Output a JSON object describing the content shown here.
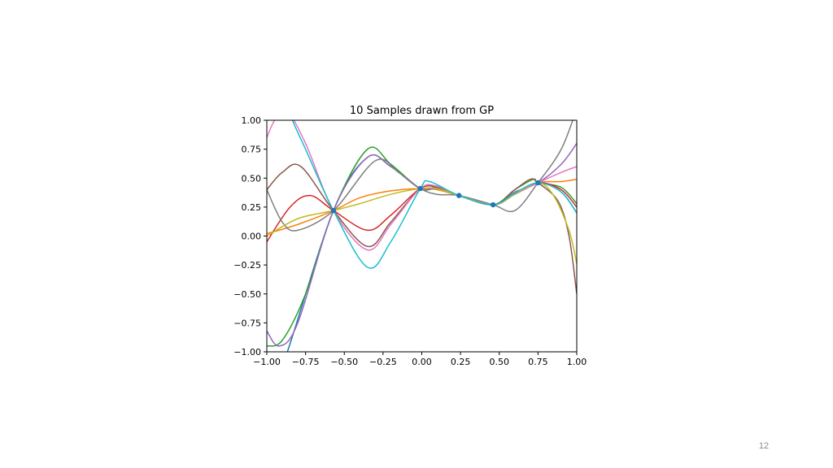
{
  "slide": {
    "page_number": "12"
  },
  "chart_data": {
    "type": "line",
    "title": "10 Samples drawn from GP",
    "xlabel": "",
    "ylabel": "",
    "xlim": [
      -1.0,
      1.0
    ],
    "ylim": [
      -1.0,
      1.0
    ],
    "x_ticks": [
      "−1.00",
      "−0.75",
      "−0.50",
      "−0.25",
      "0.00",
      "0.25",
      "0.50",
      "0.75",
      "1.00"
    ],
    "y_ticks": [
      "−1.00",
      "−0.75",
      "−0.50",
      "−0.25",
      "0.00",
      "0.25",
      "0.50",
      "0.75",
      "1.00"
    ],
    "grid": false,
    "legend": "none",
    "observations": {
      "color": "#1f77b4",
      "x": [
        -0.57,
        -0.01,
        0.24,
        0.46,
        0.75
      ],
      "y": [
        0.22,
        0.41,
        0.35,
        0.27,
        0.46
      ]
    },
    "series": [
      {
        "color": "#1f77b4",
        "x": [
          -1.0,
          -0.88,
          -0.57,
          -0.35,
          -0.2,
          -0.01,
          0.1,
          0.24,
          0.46,
          0.6,
          0.75,
          0.9,
          1.0
        ],
        "y": [
          -1.4,
          -1.05,
          0.22,
          0.68,
          0.6,
          0.41,
          0.42,
          0.35,
          0.27,
          0.37,
          0.46,
          0.38,
          0.2
        ]
      },
      {
        "color": "#ff7f0e",
        "x": [
          -1.0,
          -0.8,
          -0.57,
          -0.4,
          -0.2,
          -0.01,
          0.1,
          0.24,
          0.46,
          0.6,
          0.75,
          0.9,
          1.0
        ],
        "y": [
          0.02,
          0.1,
          0.22,
          0.33,
          0.39,
          0.41,
          0.4,
          0.35,
          0.27,
          0.36,
          0.46,
          0.47,
          0.49
        ]
      },
      {
        "color": "#2ca02c",
        "x": [
          -1.0,
          -0.9,
          -0.75,
          -0.57,
          -0.35,
          -0.2,
          -0.01,
          0.1,
          0.24,
          0.46,
          0.6,
          0.72,
          0.75,
          0.9,
          1.0
        ],
        "y": [
          -0.95,
          -0.9,
          -0.5,
          0.22,
          0.75,
          0.62,
          0.41,
          0.41,
          0.35,
          0.27,
          0.4,
          0.49,
          0.46,
          0.42,
          0.28
        ]
      },
      {
        "color": "#d62728",
        "x": [
          -1.0,
          -0.85,
          -0.72,
          -0.57,
          -0.35,
          -0.2,
          -0.01,
          0.1,
          0.24,
          0.46,
          0.6,
          0.75,
          0.9,
          1.0
        ],
        "y": [
          -0.05,
          0.25,
          0.35,
          0.22,
          0.05,
          0.18,
          0.41,
          0.42,
          0.35,
          0.27,
          0.36,
          0.46,
          0.4,
          0.25
        ]
      },
      {
        "color": "#9467bd",
        "x": [
          -1.0,
          -0.92,
          -0.8,
          -0.57,
          -0.35,
          -0.2,
          -0.01,
          0.1,
          0.24,
          0.46,
          0.6,
          0.75,
          0.9,
          1.0
        ],
        "y": [
          -0.82,
          -0.95,
          -0.75,
          0.22,
          0.68,
          0.6,
          0.41,
          0.41,
          0.35,
          0.27,
          0.38,
          0.46,
          0.62,
          0.8
        ]
      },
      {
        "color": "#8c564b",
        "x": [
          -1.0,
          -0.9,
          -0.78,
          -0.57,
          -0.35,
          -0.2,
          -0.01,
          0.1,
          0.24,
          0.46,
          0.6,
          0.7,
          0.75,
          0.88,
          0.95,
          1.0
        ],
        "y": [
          0.4,
          0.55,
          0.6,
          0.22,
          -0.09,
          0.12,
          0.41,
          0.42,
          0.35,
          0.27,
          0.4,
          0.49,
          0.46,
          0.3,
          0.0,
          -0.5
        ]
      },
      {
        "color": "#e377c2",
        "x": [
          -1.0,
          -0.95,
          -0.88,
          -0.75,
          -0.57,
          -0.35,
          -0.2,
          -0.01,
          0.1,
          0.24,
          0.46,
          0.6,
          0.75,
          0.9,
          1.0
        ],
        "y": [
          0.85,
          1.0,
          1.1,
          0.8,
          0.22,
          -0.12,
          0.1,
          0.41,
          0.43,
          0.35,
          0.27,
          0.36,
          0.46,
          0.55,
          0.6
        ]
      },
      {
        "color": "#7f7f7f",
        "x": [
          -1.0,
          -0.9,
          -0.8,
          -0.57,
          -0.3,
          -0.15,
          -0.01,
          0.1,
          0.24,
          0.46,
          0.6,
          0.75,
          0.9,
          1.0
        ],
        "y": [
          0.4,
          0.12,
          0.05,
          0.22,
          0.65,
          0.55,
          0.41,
          0.36,
          0.35,
          0.27,
          0.22,
          0.46,
          0.75,
          1.1
        ]
      },
      {
        "color": "#bcbd22",
        "x": [
          -1.0,
          -0.8,
          -0.57,
          -0.4,
          -0.2,
          -0.01,
          0.1,
          0.24,
          0.46,
          0.6,
          0.75,
          0.85,
          0.95,
          1.0
        ],
        "y": [
          0.0,
          0.15,
          0.22,
          0.28,
          0.36,
          0.41,
          0.41,
          0.35,
          0.27,
          0.36,
          0.46,
          0.35,
          0.05,
          -0.24
        ]
      },
      {
        "color": "#17becf",
        "x": [
          -1.0,
          -0.85,
          -0.75,
          -0.57,
          -0.35,
          -0.2,
          -0.01,
          0.05,
          0.24,
          0.46,
          0.6,
          0.75,
          0.9,
          1.0
        ],
        "y": [
          1.6,
          1.05,
          0.75,
          0.22,
          -0.27,
          -0.05,
          0.41,
          0.47,
          0.35,
          0.27,
          0.37,
          0.46,
          0.38,
          0.2
        ]
      }
    ]
  }
}
